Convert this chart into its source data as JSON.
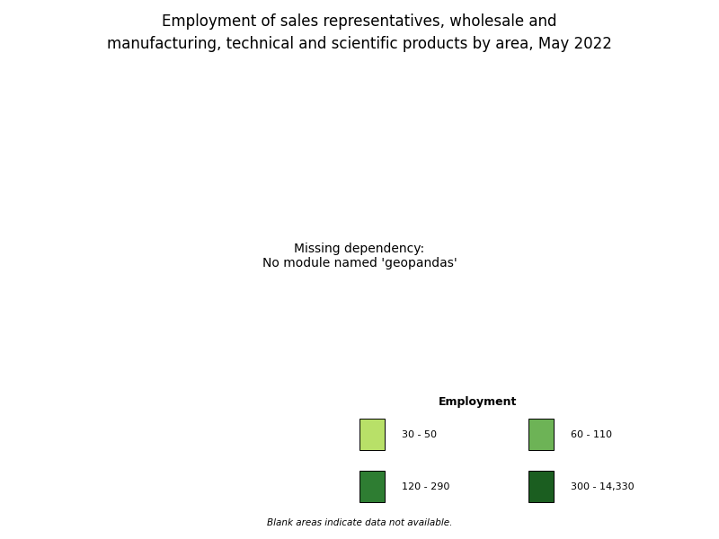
{
  "title_line1": "Employment of sales representatives, wholesale and",
  "title_line2": "manufacturing, technical and scientific products by area, May 2022",
  "title_fontsize": 12,
  "legend_title": "Employment",
  "legend_labels": [
    "30 - 50",
    "60 - 110",
    "120 - 290",
    "300 - 14,330"
  ],
  "legend_colors": [
    "#b8e068",
    "#6db356",
    "#2e7d32",
    "#1b5e20"
  ],
  "no_data_color": "#ffffff",
  "boundary_color": "#333333",
  "background_color": "#ffffff",
  "footnote": "Blank areas indicate data not available.",
  "cat_colors": {
    "0": "#ffffff",
    "1": "#b8e068",
    "2": "#6db356",
    "3": "#2e7d32",
    "4": "#1b5e20"
  },
  "olive_color": "#8a8a2a"
}
